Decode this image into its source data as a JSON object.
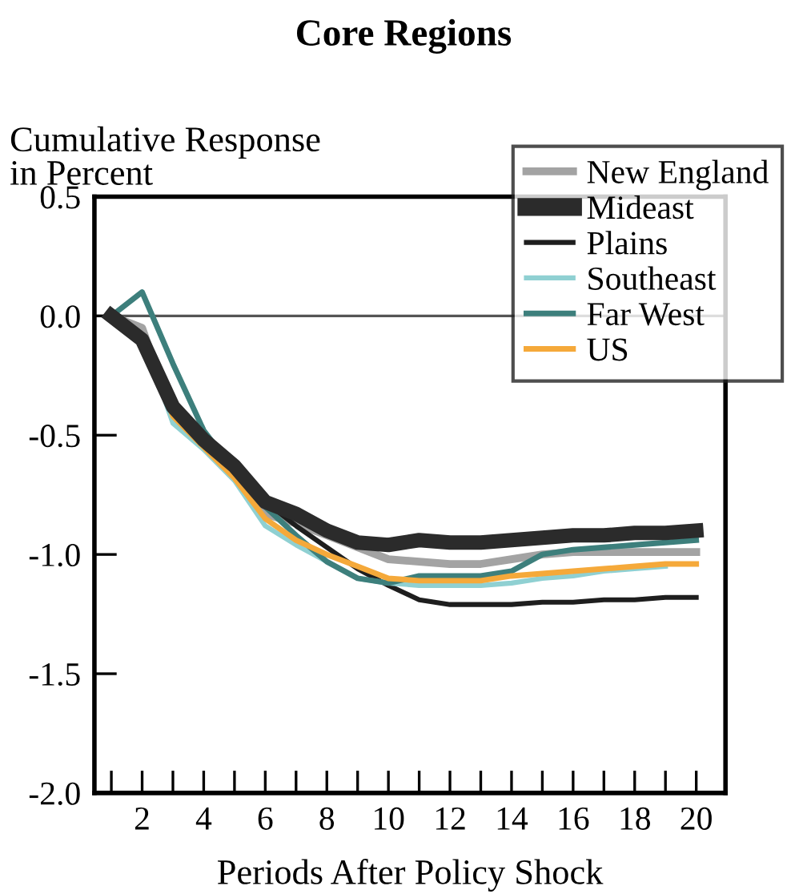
{
  "chart_data": {
    "type": "line",
    "title": "Core Regions",
    "ylabel": "Cumulative Response\nin Percent",
    "xlabel": "Periods After Policy Shock",
    "x": [
      1,
      2,
      3,
      4,
      5,
      6,
      7,
      8,
      9,
      10,
      11,
      12,
      13,
      14,
      15,
      16,
      17,
      18,
      19,
      20
    ],
    "series": [
      {
        "name": "New England",
        "color": "#a3a3a3",
        "values": [
          0,
          -0.05,
          -0.42,
          -0.55,
          -0.68,
          -0.83,
          -0.87,
          -0.92,
          -0.97,
          -1.02,
          -1.03,
          -1.04,
          -1.04,
          -1.02,
          -1.0,
          -0.99,
          -0.99,
          -0.99,
          -0.99,
          -0.99
        ]
      },
      {
        "name": "Mideast",
        "color": "#2b2b2b",
        "values": [
          0,
          -0.1,
          -0.38,
          -0.52,
          -0.63,
          -0.78,
          -0.83,
          -0.9,
          -0.95,
          -0.96,
          -0.94,
          -0.95,
          -0.95,
          -0.94,
          -0.93,
          -0.92,
          -0.92,
          -0.91,
          -0.91,
          -0.9
        ]
      },
      {
        "name": "Plains",
        "color": "#1e1e1e",
        "values": [
          0,
          -0.12,
          -0.38,
          -0.5,
          -0.62,
          -0.78,
          -0.88,
          -0.97,
          -1.06,
          -1.13,
          -1.19,
          -1.21,
          -1.21,
          -1.21,
          -1.2,
          -1.2,
          -1.19,
          -1.19,
          -1.18,
          -1.18
        ]
      },
      {
        "name": "Southeast",
        "color": "#8fd0d2",
        "values": [
          0,
          -0.08,
          -0.45,
          -0.56,
          -0.69,
          -0.88,
          -0.96,
          -1.03,
          -1.1,
          -1.12,
          -1.13,
          -1.13,
          -1.13,
          -1.12,
          -1.1,
          -1.09,
          -1.07,
          -1.06,
          -1.05,
          null
        ]
      },
      {
        "name": "Far West",
        "color": "#3d7f7c",
        "values": [
          0,
          0.1,
          -0.2,
          -0.48,
          -0.65,
          -0.8,
          -0.92,
          -1.03,
          -1.1,
          -1.12,
          -1.09,
          -1.09,
          -1.09,
          -1.07,
          -1.0,
          -0.98,
          -0.97,
          -0.96,
          -0.95,
          -0.94
        ]
      },
      {
        "name": "US",
        "color": "#f5a93a",
        "values": [
          0,
          -0.08,
          -0.42,
          -0.55,
          -0.68,
          -0.85,
          -0.94,
          -1.0,
          -1.05,
          -1.1,
          -1.11,
          -1.11,
          -1.11,
          -1.09,
          -1.08,
          -1.07,
          -1.06,
          -1.05,
          -1.04,
          -1.04
        ]
      }
    ],
    "xlim": [
      0.45,
      20.95
    ],
    "xticks": [
      {
        "value": 1,
        "label": null
      },
      2,
      {
        "value": 3,
        "label": null
      },
      4,
      {
        "value": 5,
        "label": null
      },
      6,
      {
        "value": 7,
        "label": null
      },
      8,
      {
        "value": 9,
        "label": null
      },
      10,
      {
        "value": 11,
        "label": null
      },
      12,
      {
        "value": 13,
        "label": null
      },
      14,
      {
        "value": 15,
        "label": null
      },
      16,
      {
        "value": 17,
        "label": null
      },
      18,
      {
        "value": 19,
        "label": null
      },
      20
    ],
    "ylim": [
      -2.0,
      0.5
    ],
    "yticks": [
      {
        "value": 0.5,
        "label": "0.5"
      },
      {
        "value": 0.0,
        "label": "0.0"
      },
      {
        "value": -0.5,
        "label": "-0.5"
      },
      {
        "value": -1.0,
        "label": "-1.0"
      },
      {
        "value": -1.5,
        "label": "-1.5"
      },
      {
        "value": -2.0,
        "label": "-2.0"
      }
    ],
    "ref_lines": [
      {
        "axis": "y",
        "value": 0,
        "color": "#555555"
      }
    ],
    "grid": false,
    "legend": "top right",
    "marker": "none",
    "line_style": "solid"
  }
}
